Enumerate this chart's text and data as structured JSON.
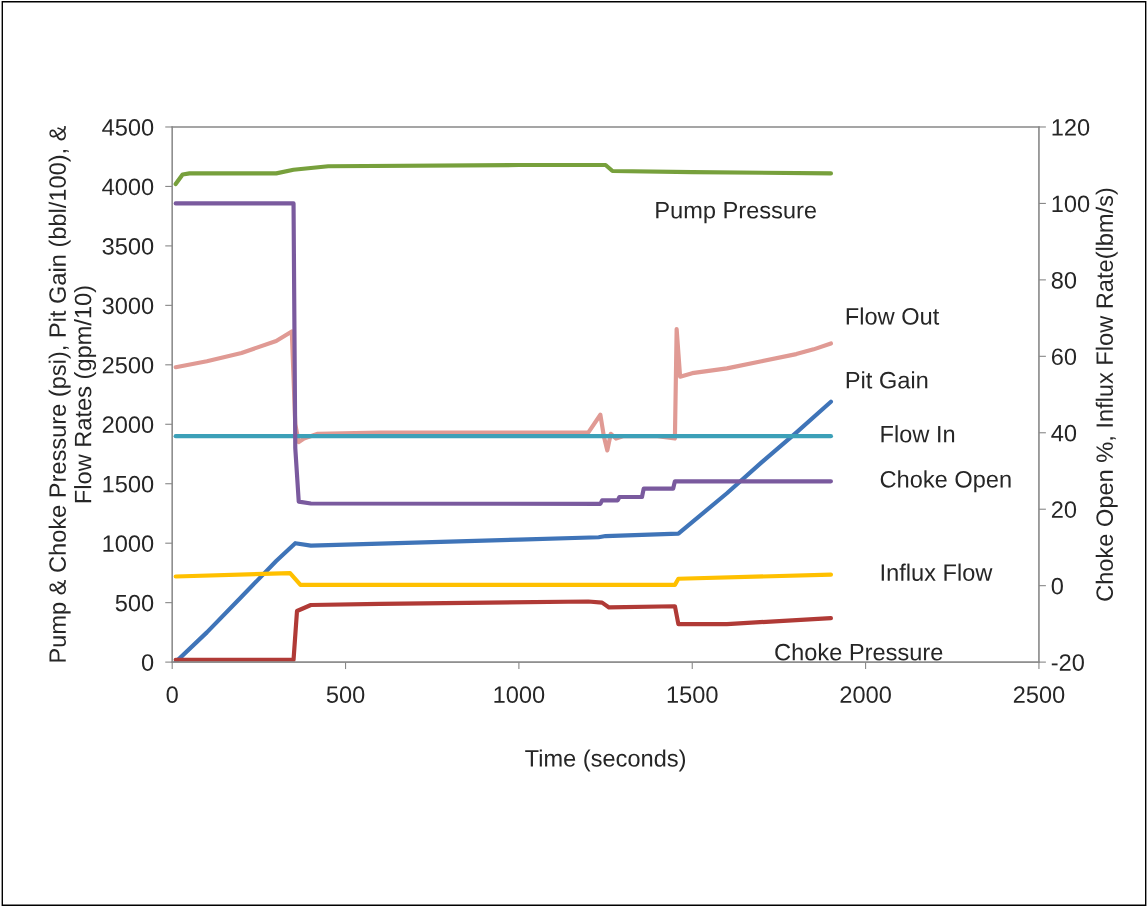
{
  "chart_data": {
    "type": "line",
    "xlabel": "Time (seconds)",
    "ylabel": "Pump & Choke Pressure (psi), Pit Gain (bbl/100), &\nFlow Rates (gpm/10)",
    "y2label": "Choke Open %, Influx Flow Rate(lbm/s)",
    "xlim": [
      0,
      2500
    ],
    "xticks": [
      0,
      500,
      1000,
      1500,
      2000,
      2500
    ],
    "ylim": [
      0,
      4500
    ],
    "yticks": [
      0,
      500,
      1000,
      1500,
      2000,
      2500,
      3000,
      3500,
      4000,
      4500
    ],
    "y2lim": [
      -20,
      120
    ],
    "y2ticks": [
      -20,
      0,
      20,
      40,
      60,
      80,
      100,
      120
    ],
    "grid": false,
    "legend": false,
    "marker": "none",
    "line_style": "solid",
    "series": [
      {
        "name": "Pump Pressure",
        "color": "#77a03c",
        "x": [
          10,
          30,
          50,
          300,
          350,
          450,
          1000,
          1250,
          1270,
          1500,
          1900
        ],
        "values": [
          4020,
          4100,
          4110,
          4110,
          4140,
          4170,
          4180,
          4180,
          4130,
          4120,
          4110
        ]
      },
      {
        "name": "Flow Out",
        "color": "#e09a94",
        "x": [
          10,
          100,
          200,
          300,
          345,
          355,
          365,
          380,
          420,
          600,
          1200,
          1235,
          1245,
          1255,
          1265,
          1280,
          1300,
          1400,
          1450,
          1455,
          1465,
          1500,
          1600,
          1700,
          1800,
          1850,
          1900
        ],
        "values": [
          2480,
          2530,
          2600,
          2700,
          2780,
          2000,
          1850,
          1880,
          1920,
          1930,
          1930,
          2080,
          1900,
          1780,
          1920,
          1880,
          1900,
          1900,
          1880,
          2800,
          2400,
          2430,
          2470,
          2530,
          2590,
          2630,
          2680
        ]
      },
      {
        "name": "Pit Gain",
        "color": "#3f74b8",
        "x": [
          10,
          100,
          200,
          300,
          355,
          400,
          1000,
          1230,
          1250,
          1460,
          1600,
          1700,
          1800,
          1900
        ],
        "values": [
          0,
          250,
          550,
          850,
          1000,
          980,
          1030,
          1050,
          1060,
          1080,
          1420,
          1680,
          1930,
          2190
        ]
      },
      {
        "name": "Flow In",
        "color": "#3ca0b8",
        "x": [
          10,
          1900
        ],
        "values": [
          1900,
          1900
        ]
      },
      {
        "name": "Choke Open",
        "color": "#7a5a9e",
        "axis": "y2",
        "x": [
          10,
          350,
          355,
          365,
          400,
          1235,
          1240,
          1285,
          1290,
          1355,
          1360,
          1445,
          1450,
          1900
        ],
        "values": [
          100,
          100,
          36,
          22,
          21.5,
          21.4,
          22.3,
          22.3,
          23.2,
          23.2,
          25.4,
          25.4,
          27.3,
          27.3
        ]
      },
      {
        "name": "Influx Flow",
        "color": "#ffc000",
        "axis": "y2",
        "x": [
          10,
          340,
          370,
          1450,
          1460,
          1900
        ],
        "values": [
          2.4,
          3.3,
          0.2,
          0.2,
          1.8,
          2.9
        ]
      },
      {
        "name": "Choke Pressure",
        "color": "#b03a36",
        "x": [
          10,
          350,
          360,
          400,
          600,
          1200,
          1240,
          1260,
          1450,
          1460,
          1600,
          1900
        ],
        "values": [
          20,
          20,
          430,
          480,
          490,
          510,
          500,
          460,
          470,
          320,
          320,
          370
        ]
      }
    ]
  }
}
